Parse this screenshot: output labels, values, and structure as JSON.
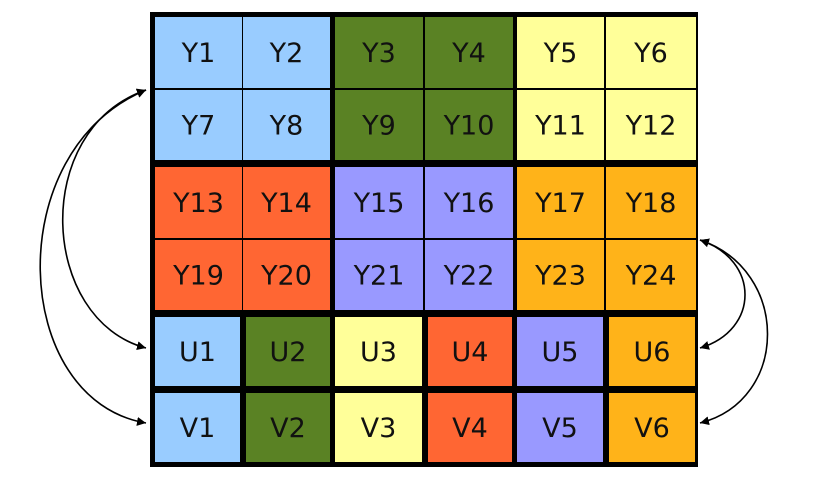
{
  "colors": {
    "blue": "#99ccff",
    "green": "#5a8224",
    "yellow": "#ffff99",
    "red": "#ff6633",
    "purple": "#9999ff",
    "orange": "#ffb319"
  },
  "y_rows": [
    [
      {
        "label": "Y1",
        "color": "blue"
      },
      {
        "label": "Y2",
        "color": "blue"
      },
      {
        "label": "Y3",
        "color": "green"
      },
      {
        "label": "Y4",
        "color": "green"
      },
      {
        "label": "Y5",
        "color": "yellow"
      },
      {
        "label": "Y6",
        "color": "yellow"
      }
    ],
    [
      {
        "label": "Y7",
        "color": "blue"
      },
      {
        "label": "Y8",
        "color": "blue"
      },
      {
        "label": "Y9",
        "color": "green"
      },
      {
        "label": "Y10",
        "color": "green"
      },
      {
        "label": "Y11",
        "color": "yellow"
      },
      {
        "label": "Y12",
        "color": "yellow"
      }
    ],
    [
      {
        "label": "Y13",
        "color": "red"
      },
      {
        "label": "Y14",
        "color": "red"
      },
      {
        "label": "Y15",
        "color": "purple"
      },
      {
        "label": "Y16",
        "color": "purple"
      },
      {
        "label": "Y17",
        "color": "orange"
      },
      {
        "label": "Y18",
        "color": "orange"
      }
    ],
    [
      {
        "label": "Y19",
        "color": "red"
      },
      {
        "label": "Y20",
        "color": "red"
      },
      {
        "label": "Y21",
        "color": "purple"
      },
      {
        "label": "Y22",
        "color": "purple"
      },
      {
        "label": "Y23",
        "color": "orange"
      },
      {
        "label": "Y24",
        "color": "orange"
      }
    ]
  ],
  "u_row": [
    {
      "label": "U1",
      "color": "blue"
    },
    {
      "label": "U2",
      "color": "green"
    },
    {
      "label": "U3",
      "color": "yellow"
    },
    {
      "label": "U4",
      "color": "red"
    },
    {
      "label": "U5",
      "color": "purple"
    },
    {
      "label": "U6",
      "color": "orange"
    }
  ],
  "v_row": [
    {
      "label": "V1",
      "color": "blue"
    },
    {
      "label": "V2",
      "color": "green"
    },
    {
      "label": "V3",
      "color": "yellow"
    },
    {
      "label": "V4",
      "color": "red"
    },
    {
      "label": "V5",
      "color": "purple"
    },
    {
      "label": "V6",
      "color": "orange"
    }
  ]
}
